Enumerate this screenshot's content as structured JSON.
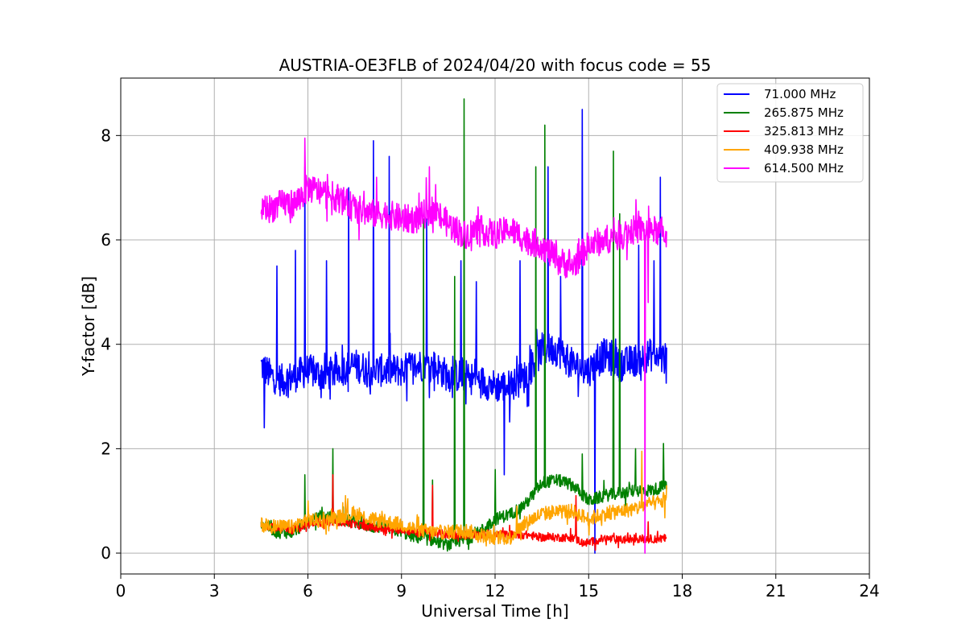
{
  "chart_data": {
    "type": "line",
    "title": "AUSTRIA-OE3FLB of 2024/04/20 with focus code = 55",
    "xlabel": "Universal Time [h]",
    "ylabel": "Y-factor [dB]",
    "xlim": [
      0,
      24
    ],
    "ylim": [
      -0.4,
      9.1
    ],
    "xticks": [
      0,
      3,
      6,
      9,
      12,
      15,
      18,
      21,
      24
    ],
    "yticks": [
      0,
      2,
      4,
      6,
      8
    ],
    "grid": true,
    "legend_position": "top-right",
    "series": [
      {
        "name": "71.000 MHz",
        "color": "#0000ff",
        "x": [
          4.5,
          4.8,
          5.2,
          5.6,
          6.0,
          6.5,
          7.0,
          7.5,
          8.0,
          8.5,
          9.0,
          9.5,
          10.0,
          10.5,
          11.0,
          11.5,
          12.0,
          12.5,
          13.0,
          13.5,
          14.0,
          14.5,
          15.0,
          15.5,
          16.0,
          16.5,
          17.0,
          17.5
        ],
        "y": [
          3.6,
          3.4,
          3.3,
          3.4,
          3.5,
          3.4,
          3.5,
          3.6,
          3.5,
          3.5,
          3.5,
          3.6,
          3.6,
          3.4,
          3.4,
          3.3,
          3.2,
          3.2,
          3.4,
          3.9,
          3.9,
          3.6,
          3.5,
          3.8,
          3.6,
          3.7,
          3.8,
          3.7
        ],
        "spikes": [
          [
            4.6,
            2.4
          ],
          [
            5.0,
            5.5
          ],
          [
            5.6,
            5.8
          ],
          [
            5.9,
            7.4
          ],
          [
            6.6,
            5.6
          ],
          [
            7.3,
            7.0
          ],
          [
            8.1,
            7.9
          ],
          [
            8.6,
            7.6
          ],
          [
            9.8,
            6.4
          ],
          [
            10.9,
            5.6
          ],
          [
            11.4,
            5.2
          ],
          [
            12.3,
            1.5
          ],
          [
            12.8,
            5.6
          ],
          [
            13.7,
            7.4
          ],
          [
            14.1,
            5.3
          ],
          [
            14.8,
            8.5
          ],
          [
            15.2,
            0.0
          ],
          [
            16.6,
            5.9
          ],
          [
            17.1,
            5.6
          ],
          [
            17.3,
            7.2
          ]
        ]
      },
      {
        "name": "265.875 MHz",
        "color": "#008000",
        "x": [
          4.5,
          5.0,
          5.5,
          6.0,
          6.5,
          7.0,
          7.5,
          8.0,
          8.5,
          9.0,
          9.5,
          10.0,
          10.5,
          11.0,
          11.5,
          12.0,
          12.5,
          13.0,
          13.5,
          14.0,
          14.5,
          15.0,
          15.5,
          16.0,
          16.5,
          17.0,
          17.5
        ],
        "y": [
          0.6,
          0.4,
          0.4,
          0.6,
          0.7,
          0.65,
          0.6,
          0.5,
          0.5,
          0.4,
          0.3,
          0.25,
          0.15,
          0.25,
          0.4,
          0.65,
          0.75,
          0.95,
          1.35,
          1.4,
          1.3,
          1.0,
          1.1,
          1.15,
          1.2,
          1.2,
          1.3
        ],
        "spikes": [
          [
            5.9,
            1.5
          ],
          [
            6.8,
            2.0
          ],
          [
            9.7,
            6.4
          ],
          [
            10.0,
            1.4
          ],
          [
            10.7,
            5.3
          ],
          [
            11.0,
            8.7
          ],
          [
            12.0,
            1.6
          ],
          [
            13.3,
            7.4
          ],
          [
            13.6,
            8.2
          ],
          [
            14.8,
            1.9
          ],
          [
            15.8,
            7.7
          ],
          [
            16.0,
            6.5
          ],
          [
            16.5,
            2.0
          ],
          [
            17.4,
            2.1
          ]
        ]
      },
      {
        "name": "325.813 MHz",
        "color": "#ff0000",
        "x": [
          4.5,
          5.0,
          5.5,
          6.0,
          6.5,
          7.0,
          7.5,
          8.0,
          8.5,
          9.0,
          9.5,
          10.0,
          10.5,
          11.0,
          11.5,
          12.0,
          12.5,
          13.0,
          13.5,
          14.0,
          14.5,
          14.8,
          15.0,
          15.5,
          16.0,
          16.5,
          17.0,
          17.5
        ],
        "y": [
          0.55,
          0.5,
          0.45,
          0.55,
          0.6,
          0.6,
          0.55,
          0.5,
          0.45,
          0.45,
          0.4,
          0.4,
          0.35,
          0.35,
          0.35,
          0.35,
          0.35,
          0.35,
          0.3,
          0.3,
          0.3,
          0.2,
          0.2,
          0.28,
          0.25,
          0.28,
          0.27,
          0.28
        ],
        "spikes": [
          [
            6.8,
            1.5
          ],
          [
            7.2,
            1.0
          ],
          [
            10.0,
            1.3
          ],
          [
            14.6,
            1.1
          ],
          [
            16.9,
            0.6
          ]
        ]
      },
      {
        "name": "409.938 MHz",
        "color": "#ffa500",
        "x": [
          4.5,
          5.0,
          5.5,
          6.0,
          6.5,
          7.0,
          7.5,
          8.0,
          8.5,
          9.0,
          9.5,
          10.0,
          10.5,
          11.0,
          11.5,
          12.0,
          12.5,
          13.0,
          13.5,
          14.0,
          14.5,
          15.0,
          15.5,
          16.0,
          16.5,
          17.0,
          17.5
        ],
        "y": [
          0.55,
          0.5,
          0.5,
          0.65,
          0.6,
          0.7,
          0.75,
          0.65,
          0.6,
          0.55,
          0.45,
          0.4,
          0.4,
          0.45,
          0.35,
          0.3,
          0.3,
          0.6,
          0.75,
          0.8,
          0.8,
          0.65,
          0.75,
          0.8,
          0.85,
          0.95,
          1.0
        ],
        "spikes": [
          [
            6.0,
            1.0
          ],
          [
            7.2,
            1.1
          ],
          [
            12.7,
            0.9
          ],
          [
            16.7,
            1.95
          ],
          [
            17.5,
            1.3
          ]
        ]
      },
      {
        "name": "614.500 MHz",
        "color": "#ff00ff",
        "x": [
          4.5,
          4.8,
          5.2,
          5.6,
          6.0,
          6.5,
          7.0,
          7.5,
          8.0,
          8.5,
          9.0,
          9.5,
          10.0,
          10.5,
          11.0,
          11.5,
          12.0,
          12.5,
          13.0,
          13.5,
          14.0,
          14.5,
          15.0,
          15.5,
          16.0,
          16.5,
          17.0,
          17.5
        ],
        "y": [
          6.6,
          6.6,
          6.7,
          6.7,
          7.0,
          6.9,
          6.8,
          6.6,
          6.5,
          6.5,
          6.4,
          6.4,
          6.6,
          6.3,
          6.1,
          6.2,
          6.1,
          6.2,
          6.0,
          5.9,
          5.6,
          5.5,
          5.9,
          6.0,
          6.1,
          6.2,
          6.2,
          6.1
        ],
        "spikes": [
          [
            5.9,
            7.95
          ],
          [
            8.2,
            7.2
          ],
          [
            9.9,
            7.4
          ],
          [
            12.4,
            6.3
          ],
          [
            14.4,
            5.4
          ],
          [
            16.8,
            0.0
          ],
          [
            16.9,
            4.8
          ]
        ]
      }
    ]
  }
}
